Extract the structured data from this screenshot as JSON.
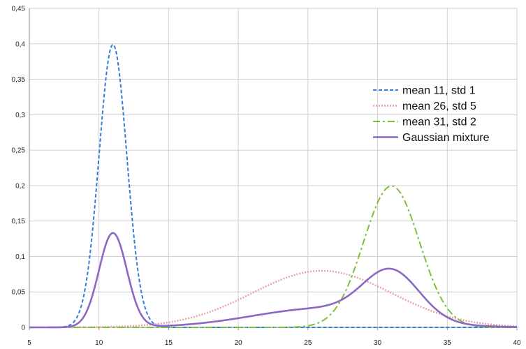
{
  "chart_data": {
    "type": "line",
    "title": "",
    "xlabel": "",
    "ylabel": "",
    "xlim": [
      5,
      40
    ],
    "ylim": [
      0,
      0.45
    ],
    "x_ticks": [
      "5",
      "10",
      "15",
      "20",
      "25",
      "30",
      "35",
      "40"
    ],
    "y_ticks": [
      "0",
      "0,05",
      "0,1",
      "0,15",
      "0,2",
      "0,25",
      "0,3",
      "0,35",
      "0,4",
      "0,45"
    ],
    "grid": true,
    "legend_position": "right",
    "series": [
      {
        "name": "mean 11, std 1",
        "color": "#2f7ed8",
        "dash": "dashed",
        "distribution": {
          "kind": "normal",
          "mean": 11,
          "std": 1,
          "weight": 1
        }
      },
      {
        "name": "mean 26, std 5",
        "color": "#e8a4a4",
        "dash": "dotted",
        "distribution": {
          "kind": "normal",
          "mean": 26,
          "std": 5,
          "weight": 1
        }
      },
      {
        "name": "mean 31, std 2",
        "color": "#7cbf3a",
        "dash": "dash-dot",
        "distribution": {
          "kind": "normal",
          "mean": 31,
          "std": 2,
          "weight": 1
        }
      },
      {
        "name": "Gaussian mixture",
        "color": "#8b68c4",
        "dash": "solid",
        "distribution": {
          "kind": "mixture",
          "components": [
            {
              "mean": 11,
              "std": 1,
              "weight": 0.333
            },
            {
              "mean": 26,
              "std": 5,
              "weight": 0.333
            },
            {
              "mean": 31,
              "std": 2,
              "weight": 0.333
            }
          ]
        }
      }
    ]
  }
}
